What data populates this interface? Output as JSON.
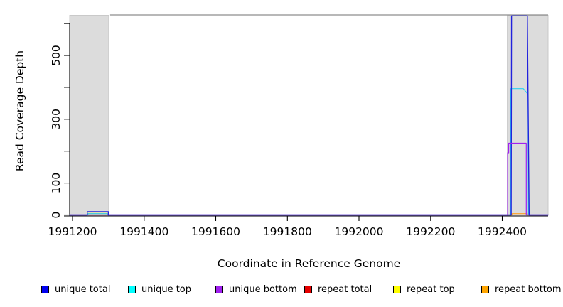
{
  "chart_data": {
    "type": "line",
    "title": "",
    "xlabel": "Coordinate in Reference Genome",
    "ylabel": "Read Coverage Depth",
    "xlim": [
      1991192,
      1992528
    ],
    "ylim": [
      0,
      627
    ],
    "grid": "off",
    "legend_position": "bottom",
    "x_ticks": [
      {
        "value": 1991200,
        "label": "1991200"
      },
      {
        "value": 1991400,
        "label": "1991400"
      },
      {
        "value": 1991600,
        "label": "1991600"
      },
      {
        "value": 1991800,
        "label": "1991800"
      },
      {
        "value": 1992000,
        "label": "1992000"
      },
      {
        "value": 1992200,
        "label": "1992200"
      },
      {
        "value": 1992400,
        "label": "1992400"
      }
    ],
    "y_ticks": [
      {
        "value": 0,
        "label": "0"
      },
      {
        "value": 100,
        "label": "100"
      },
      {
        "value": 200,
        "label": ""
      },
      {
        "value": 300,
        "label": "300"
      },
      {
        "value": 400,
        "label": ""
      },
      {
        "value": 500,
        "label": "500"
      },
      {
        "value": 600,
        "label": ""
      }
    ],
    "shaded_regions": [
      {
        "from": 1991192,
        "to": 1991301
      },
      {
        "from": 1992414,
        "to": 1992528
      }
    ],
    "region_fill": "#dcdcdc",
    "region_border": "#c9c9c9",
    "clip_line": {
      "from": 1991305,
      "to": 1992528,
      "depth": 627,
      "color": "#8e8e8e"
    },
    "series": [
      {
        "name": "unique total",
        "color": "#0000f0",
        "line_color": "#2222dd",
        "width": 1.4,
        "points": [
          [
            1991192,
            0
          ],
          [
            1991241,
            0
          ],
          [
            1991241,
            10
          ],
          [
            1991300,
            10
          ],
          [
            1991300,
            0
          ],
          [
            1992425,
            0
          ],
          [
            1992426,
            624
          ],
          [
            1992470,
            624
          ],
          [
            1992475,
            0
          ],
          [
            1992528,
            0
          ]
        ]
      },
      {
        "name": "unique top",
        "color": "#00ffff",
        "line_color": "#2ed1f0",
        "width": 1.2,
        "points": [
          [
            1991192,
            0
          ],
          [
            1991243,
            0
          ],
          [
            1991243,
            4
          ],
          [
            1991297,
            4
          ],
          [
            1991297,
            0
          ],
          [
            1992424,
            0
          ],
          [
            1992424,
            396
          ],
          [
            1992459,
            396
          ],
          [
            1992472,
            378
          ],
          [
            1992473,
            0
          ],
          [
            1992528,
            0
          ]
        ]
      },
      {
        "name": "unique bottom",
        "color": "#a020f0",
        "line_color": "#a020f0",
        "width": 1.2,
        "points": [
          [
            1991192,
            0
          ],
          [
            1992415,
            0
          ],
          [
            1992415,
            195
          ],
          [
            1992418,
            195
          ],
          [
            1992418,
            225
          ],
          [
            1992467,
            225
          ],
          [
            1992467,
            0
          ],
          [
            1992528,
            0
          ]
        ]
      },
      {
        "name": "repeat total",
        "color": "#e60000",
        "line_color": "#e62222",
        "width": 1.1,
        "points": [
          [
            1991192,
            0
          ],
          [
            1992528,
            0
          ]
        ]
      },
      {
        "name": "repeat top",
        "color": "#ffff00",
        "line_color": "#efdc3c",
        "width": 1.1,
        "points": [
          [
            1991192,
            0
          ],
          [
            1991242,
            0
          ],
          [
            1991242,
            5
          ],
          [
            1991298,
            5
          ],
          [
            1991298,
            0
          ],
          [
            1992528,
            0
          ]
        ]
      },
      {
        "name": "repeat bottom",
        "color": "#ffa500",
        "line_color": "#ffa022",
        "width": 1.2,
        "points": [
          [
            1991192,
            0
          ],
          [
            1992427,
            0
          ],
          [
            1992427,
            4
          ],
          [
            1992470,
            4
          ],
          [
            1992470,
            0
          ],
          [
            1992528,
            0
          ]
        ]
      }
    ],
    "draw_order": [
      3,
      4,
      5,
      1,
      0,
      2
    ]
  }
}
